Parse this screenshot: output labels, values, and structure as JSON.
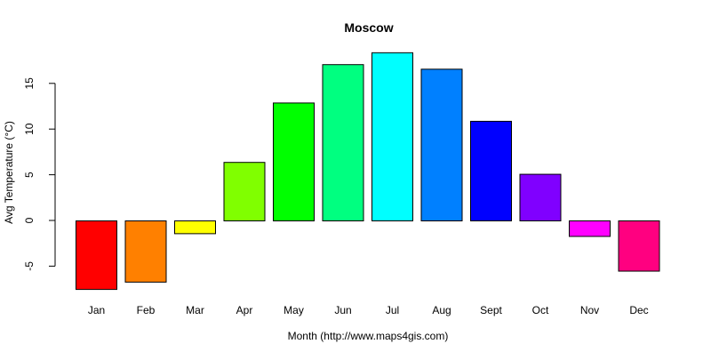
{
  "chart_data": {
    "type": "bar",
    "title": "Moscow",
    "xlabel": "Month (http://www.maps4gis.com)",
    "ylabel": "Avg Temperature (°C)",
    "categories": [
      "Jan",
      "Feb",
      "Mar",
      "Apr",
      "May",
      "Jun",
      "Jul",
      "Aug",
      "Sept",
      "Oct",
      "Nov",
      "Dec"
    ],
    "values": [
      -7.5,
      -6.7,
      -1.4,
      6.4,
      12.9,
      17.1,
      18.4,
      16.6,
      10.9,
      5.1,
      -1.7,
      -5.5
    ],
    "colors": [
      "#FF0000",
      "#FF8000",
      "#FFFF00",
      "#80FF00",
      "#00FF00",
      "#00FF80",
      "#00FFFF",
      "#0080FF",
      "#0000FF",
      "#8000FF",
      "#FF00FF",
      "#FF0080"
    ],
    "yticks": [
      -5,
      0,
      5,
      10,
      15
    ],
    "ytick_labels": [
      "-5",
      "0",
      "5",
      "10",
      "15"
    ],
    "ylim": [
      -7.5,
      18.4
    ],
    "grid": false,
    "legend": "none"
  }
}
